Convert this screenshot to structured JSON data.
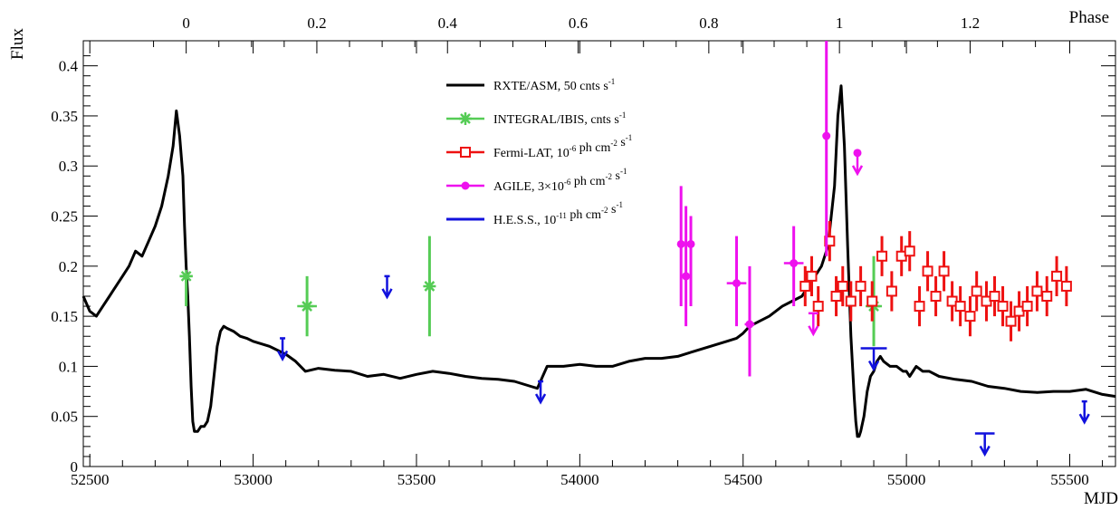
{
  "chart_data": {
    "type": "scatter",
    "xlabel": "MJD",
    "ylabel": "Flux",
    "x2label": "Phase",
    "xlim": [
      52480,
      55640
    ],
    "ylim": [
      0,
      0.425
    ],
    "x_ticks": [
      52500,
      53000,
      53500,
      54000,
      54500,
      55000,
      55500
    ],
    "x_tick_labels": [
      "52500",
      "53000",
      "53500",
      "54000",
      "54500",
      "55000",
      "55500"
    ],
    "y_ticks": [
      0,
      0.05,
      0.1,
      0.15,
      0.2,
      0.25,
      0.3,
      0.35,
      0.4
    ],
    "y_tick_labels": [
      "0",
      "0.05",
      "0.1",
      "0.15",
      "0.2",
      "0.25",
      "0.3",
      "0.35",
      "0.4"
    ],
    "phase_axis": {
      "mjd_at_phase0": 52795,
      "mjd_at_phase1": 54795,
      "ticks": [
        0,
        0.2,
        0.4,
        0.6,
        0.8,
        1,
        1.2
      ],
      "tick_labels": [
        "0",
        "0.2",
        "0.4",
        "0.6",
        "0.8",
        "1",
        "1.2"
      ]
    },
    "grid": false,
    "legend_position": "top-center",
    "series": [
      {
        "name": "RXTE/ASM, 50 cnts s",
        "name_sup": "-1",
        "kind": "line",
        "color": "#000000",
        "x": [
          52480,
          52500,
          52520,
          52540,
          52560,
          52580,
          52600,
          52620,
          52640,
          52660,
          52680,
          52700,
          52720,
          52740,
          52755,
          52765,
          52775,
          52785,
          52790,
          52795,
          52800,
          52805,
          52810,
          52815,
          52820,
          52830,
          52840,
          52850,
          52860,
          52870,
          52880,
          52890,
          52900,
          52910,
          52920,
          52940,
          52960,
          52980,
          53000,
          53050,
          53100,
          53130,
          53160,
          53200,
          53250,
          53300,
          53350,
          53400,
          53450,
          53500,
          53550,
          53600,
          53650,
          53700,
          53750,
          53800,
          53850,
          53870,
          53900,
          53950,
          54000,
          54050,
          54100,
          54150,
          54200,
          54250,
          54300,
          54350,
          54400,
          54450,
          54480,
          54500,
          54520,
          54550,
          54580,
          54600,
          54620,
          54650,
          54680,
          54700,
          54720,
          54740,
          54760,
          54780,
          54790,
          54800,
          54810,
          54820,
          54830,
          54840,
          54845,
          54850,
          54855,
          54860,
          54870,
          54880,
          54890,
          54900,
          54910,
          54920,
          54930,
          54950,
          54970,
          54990,
          55000,
          55010,
          55030,
          55050,
          55070,
          55100,
          55150,
          55200,
          55250,
          55300,
          55350,
          55400,
          55450,
          55500,
          55550,
          55600,
          55640
        ],
        "y": [
          0.17,
          0.155,
          0.15,
          0.16,
          0.17,
          0.18,
          0.19,
          0.2,
          0.215,
          0.21,
          0.225,
          0.24,
          0.26,
          0.29,
          0.32,
          0.355,
          0.33,
          0.29,
          0.24,
          0.2,
          0.17,
          0.13,
          0.08,
          0.045,
          0.035,
          0.035,
          0.04,
          0.04,
          0.045,
          0.06,
          0.09,
          0.12,
          0.135,
          0.14,
          0.138,
          0.135,
          0.13,
          0.128,
          0.125,
          0.12,
          0.112,
          0.105,
          0.095,
          0.098,
          0.096,
          0.095,
          0.09,
          0.092,
          0.088,
          0.092,
          0.095,
          0.093,
          0.09,
          0.088,
          0.087,
          0.085,
          0.08,
          0.078,
          0.1,
          0.1,
          0.102,
          0.1,
          0.1,
          0.105,
          0.108,
          0.108,
          0.11,
          0.115,
          0.12,
          0.125,
          0.128,
          0.133,
          0.14,
          0.145,
          0.15,
          0.155,
          0.16,
          0.165,
          0.17,
          0.18,
          0.19,
          0.2,
          0.22,
          0.28,
          0.35,
          0.38,
          0.32,
          0.22,
          0.13,
          0.07,
          0.045,
          0.03,
          0.03,
          0.035,
          0.05,
          0.075,
          0.09,
          0.095,
          0.105,
          0.11,
          0.105,
          0.1,
          0.1,
          0.095,
          0.095,
          0.09,
          0.1,
          0.095,
          0.095,
          0.09,
          0.087,
          0.085,
          0.08,
          0.078,
          0.075,
          0.074,
          0.075,
          0.075,
          0.077,
          0.072,
          0.07
        ]
      },
      {
        "name": "INTEGRAL/IBIS, cnts s",
        "name_sup": "-1",
        "kind": "points",
        "marker": "star",
        "color": "#55cc55",
        "points": [
          {
            "x": 52795,
            "y": 0.19,
            "xerr": 20,
            "ylo": 0.16,
            "yhi": 0.19
          },
          {
            "x": 53165,
            "y": 0.16,
            "xerr": 30,
            "ylo": 0.13,
            "yhi": 0.19
          },
          {
            "x": 53540,
            "y": 0.18,
            "xerr": 5,
            "ylo": 0.13,
            "yhi": 0.23
          },
          {
            "x": 54900,
            "y": 0.16,
            "xerr": 25,
            "ylo": 0.12,
            "yhi": 0.21
          }
        ]
      },
      {
        "name": "Fermi-LAT, 10",
        "name_sup": "-6",
        "name_rest": " ph cm",
        "name_sup2": "-2",
        "name_rest2": " s",
        "name_sup3": "-1",
        "kind": "points",
        "marker": "open-square",
        "color": "#ee1111",
        "points": [
          {
            "x": 54690,
            "y": 0.18,
            "err": 0.02
          },
          {
            "x": 54710,
            "y": 0.19,
            "err": 0.02
          },
          {
            "x": 54730,
            "y": 0.16,
            "err": 0.02
          },
          {
            "x": 54765,
            "y": 0.225,
            "err": 0.02
          },
          {
            "x": 54785,
            "y": 0.17,
            "err": 0.02
          },
          {
            "x": 54805,
            "y": 0.18,
            "err": 0.02
          },
          {
            "x": 54830,
            "y": 0.165,
            "err": 0.02
          },
          {
            "x": 54860,
            "y": 0.18,
            "err": 0.02
          },
          {
            "x": 54895,
            "y": 0.165,
            "err": 0.02
          },
          {
            "x": 54925,
            "y": 0.21,
            "err": 0.02
          },
          {
            "x": 54955,
            "y": 0.175,
            "err": 0.02
          },
          {
            "x": 54985,
            "y": 0.21,
            "err": 0.02
          },
          {
            "x": 55010,
            "y": 0.215,
            "err": 0.02
          },
          {
            "x": 55040,
            "y": 0.16,
            "err": 0.02
          },
          {
            "x": 55065,
            "y": 0.195,
            "err": 0.02
          },
          {
            "x": 55090,
            "y": 0.17,
            "err": 0.02
          },
          {
            "x": 55115,
            "y": 0.195,
            "err": 0.02
          },
          {
            "x": 55140,
            "y": 0.165,
            "err": 0.02
          },
          {
            "x": 55165,
            "y": 0.16,
            "err": 0.02
          },
          {
            "x": 55195,
            "y": 0.15,
            "err": 0.02
          },
          {
            "x": 55215,
            "y": 0.175,
            "err": 0.02
          },
          {
            "x": 55245,
            "y": 0.165,
            "err": 0.02
          },
          {
            "x": 55270,
            "y": 0.17,
            "err": 0.02
          },
          {
            "x": 55295,
            "y": 0.16,
            "err": 0.02
          },
          {
            "x": 55320,
            "y": 0.145,
            "err": 0.02
          },
          {
            "x": 55345,
            "y": 0.155,
            "err": 0.02
          },
          {
            "x": 55370,
            "y": 0.16,
            "err": 0.02
          },
          {
            "x": 55400,
            "y": 0.175,
            "err": 0.02
          },
          {
            "x": 55430,
            "y": 0.17,
            "err": 0.02
          },
          {
            "x": 55460,
            "y": 0.19,
            "err": 0.02
          },
          {
            "x": 55490,
            "y": 0.18,
            "err": 0.02
          }
        ]
      },
      {
        "name": "AGILE, 3",
        "name_mid": "×",
        "name_rest": "10",
        "name_sup": "-6",
        "name_rest2": " ph cm",
        "name_sup2": "-2",
        "name_rest3": " s",
        "name_sup3": "-1",
        "kind": "points",
        "marker": "filled-circle",
        "color": "#ee11ee",
        "points": [
          {
            "x": 54310,
            "y": 0.222,
            "ylo": 0.16,
            "yhi": 0.28
          },
          {
            "x": 54325,
            "y": 0.19,
            "ylo": 0.14,
            "yhi": 0.26
          },
          {
            "x": 54340,
            "y": 0.222,
            "ylo": 0.16,
            "yhi": 0.25
          },
          {
            "x": 54480,
            "y": 0.183,
            "xerr": 30,
            "ylo": 0.14,
            "yhi": 0.23
          },
          {
            "x": 54520,
            "y": 0.142,
            "xerr": 15,
            "ylo": 0.09,
            "yhi": 0.2
          },
          {
            "x": 54655,
            "y": 0.203,
            "xerr": 30,
            "ylo": 0.16,
            "yhi": 0.24
          },
          {
            "x": 54755,
            "y": 0.33,
            "ylo": 0.21,
            "yhi": 0.425
          },
          {
            "x": 54850,
            "y": 0.313,
            "upper_limit": true
          }
        ],
        "upper_limits": [
          {
            "x": 54715,
            "y": 0.153,
            "xerr": 15
          }
        ]
      },
      {
        "name": "H.E.S.S., 10",
        "name_sup": "-11",
        "name_rest": " ph cm",
        "name_sup2": "-2",
        "name_rest2": " s",
        "name_sup3": "-1",
        "kind": "upper-limits",
        "color": "#1111dd",
        "points": [
          {
            "x": 53090,
            "y": 0.128,
            "xerr": 5
          },
          {
            "x": 53410,
            "y": 0.19,
            "xerr": 3
          },
          {
            "x": 53880,
            "y": 0.085,
            "xerr": 3
          },
          {
            "x": 54900,
            "y": 0.118,
            "xerr": 40
          },
          {
            "x": 55240,
            "y": 0.033,
            "xerr": 30
          },
          {
            "x": 55545,
            "y": 0.065,
            "xerr": 3
          }
        ]
      }
    ]
  }
}
